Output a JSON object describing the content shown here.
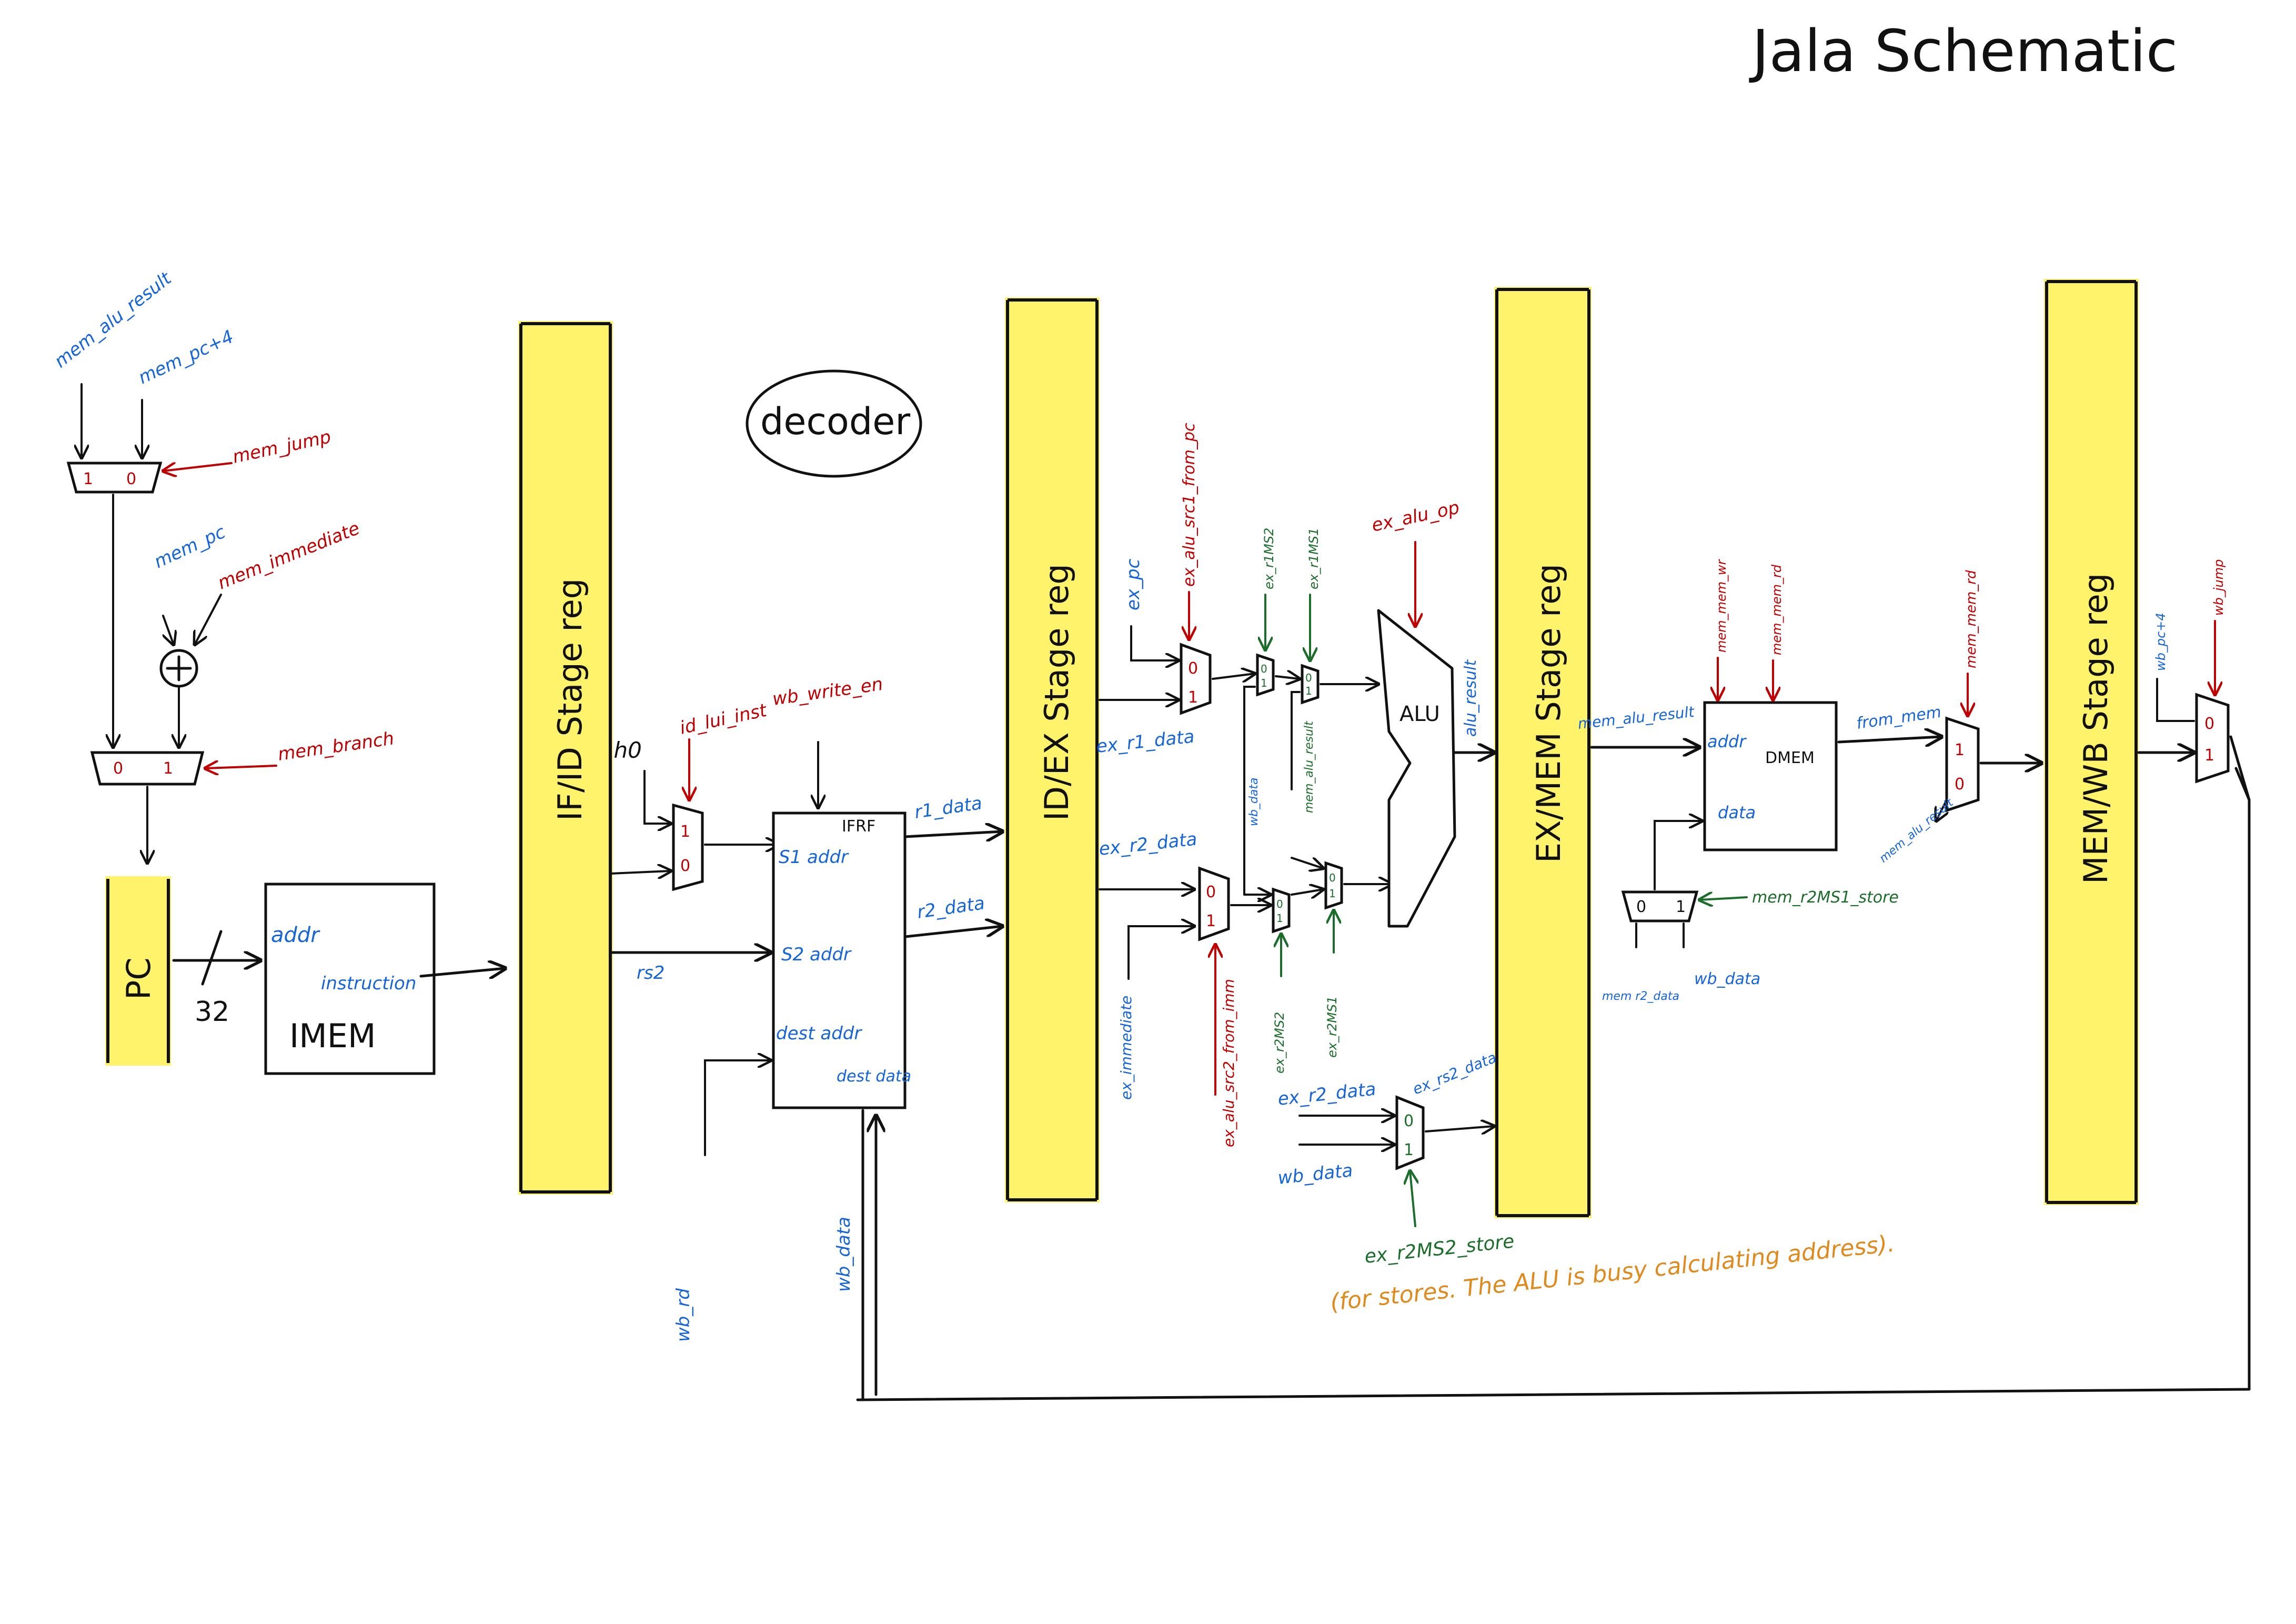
{
  "title": "Jala Schematic",
  "stages": {
    "if_id": "IF/ID Stage reg",
    "id_ex": "ID/EX Stage reg",
    "ex_mem": "EX/MEM Stage reg",
    "mem_wb": "MEM/WB Stage reg"
  },
  "blocks": {
    "pc": "PC",
    "imem": "IMEM",
    "imem_addr": "addr",
    "imem_instruction": "instruction",
    "bus_width": "32",
    "decoder": "decoder",
    "irf": "IFRF",
    "irf_s1": "S1 addr",
    "irf_s2": "S2 addr",
    "irf_dest": "dest addr",
    "irf_dest_data": "dest data",
    "alu": "ALU",
    "dmem": "DMEM",
    "dmem_addr": "addr",
    "dmem_data": "data"
  },
  "signals": {
    "mem_alu_result_top": "mem_alu_result",
    "mem_pc_4": "mem_pc+4",
    "mem_jump": "mem_jump",
    "mem_pc": "mem_pc",
    "mem_immediate": "mem_immediate",
    "mem_branch": "mem_branch",
    "zero": "'h0",
    "id_lui_inst": "id_lui_inst",
    "wb_write_en": "wb_write_en",
    "rs2": "rs2",
    "r1_data": "r1_data",
    "r2_data": "r2_data",
    "wb_rd": "wb_rd",
    "wb_data_irf": "wb_data",
    "ex_pc": "ex_pc",
    "ex_alu_src1_from_pc": "ex_alu_src1_from_pc",
    "ex_r1_data": "ex_r1_data",
    "ex_r2_data": "ex_r2_data",
    "ex_immediate": "ex_immediate",
    "ex_alu_src2_from_imm": "ex_alu_src2_from_imm",
    "ex_r1ms2_top": "ex_r1MS2",
    "ex_r1ms1_top": "ex_r1MS1",
    "wb_data_fwd": "wb_data",
    "mem_alu_result_fwd": "mem_alu_result",
    "ex_r2ms2_bottom": "ex_r2MS2",
    "ex_r2ms1_bottom": "ex_r2MS1",
    "ex_alu_op": "ex_alu_op",
    "alu_result": "alu_result",
    "ex_r2_data_store": "ex_r2_data",
    "ex_rs2_data_store": "ex_rs2_data",
    "wb_data_store": "wb_data",
    "ex_r2ms2_store": "ex_r2MS2_store",
    "store_note": "(for stores. The ALU is busy calculating address).",
    "mem_alu_result_dmem": "mem_alu_result",
    "mem_mem_wr": "mem_mem_wr",
    "mem_mem_rd": "mem_mem_rd",
    "from_mem": "from_mem",
    "mem_mem_rd_wb": "mem_mem_rd",
    "mem_alu_result_wb": "mem_alu_result",
    "mem_r2ms1_store": "mem_r2MS1_store",
    "mem_r2_data": "mem r2_data",
    "wb_data_mem": "wb_data",
    "wb_pc_4": "wb_pc+4",
    "wb_jump": "wb_jump"
  },
  "mux_digits": {
    "one": "1",
    "zero": "0"
  },
  "colors": {
    "stage_register": "#fff36b",
    "blue_signal": "#1565d8",
    "red_control": "#c00000",
    "green_forward": "#1b6e2a",
    "orange_note": "#e08a1e",
    "ink": "#111111"
  }
}
